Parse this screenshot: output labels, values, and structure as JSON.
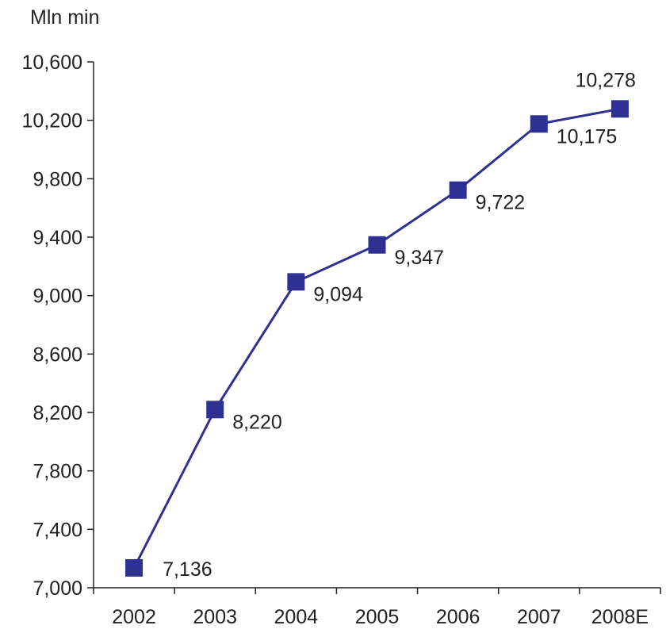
{
  "chart_data": {
    "type": "line",
    "title": "",
    "xlabel": "",
    "ylabel": "Mln min",
    "categories": [
      "2002",
      "2003",
      "2004",
      "2005",
      "2006",
      "2007",
      "2008E"
    ],
    "series": [
      {
        "values": [
          7136,
          8220,
          9094,
          9347,
          9722,
          10175,
          10278
        ],
        "labels": [
          "7,136",
          "8,220",
          "9,094",
          "9,347",
          "9,722",
          "10,175",
          "10,278"
        ]
      }
    ],
    "ylim": [
      7000,
      10600
    ],
    "yticks": [
      7000,
      7400,
      7800,
      8200,
      8600,
      9000,
      9400,
      9800,
      10200,
      10600
    ],
    "ytick_labels": [
      "7,000",
      "7,400",
      "7,800",
      "8,200",
      "8,600",
      "9,000",
      "9,400",
      "9,800",
      "10,200",
      "10,600"
    ],
    "grid": false,
    "legend": "none",
    "line_color": "#2e3192",
    "marker_color": "#2e3192",
    "marker": "square"
  }
}
